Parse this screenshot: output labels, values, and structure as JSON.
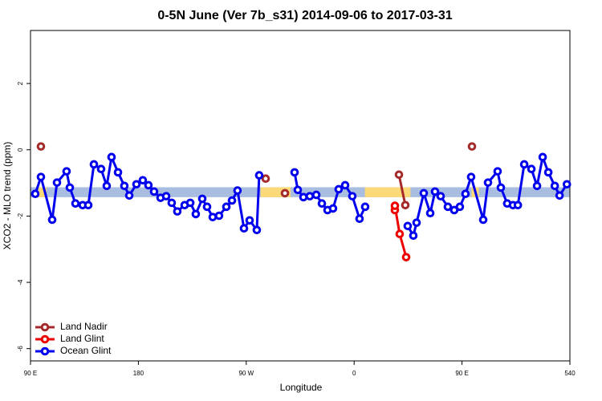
{
  "chart_data": {
    "type": "line",
    "title": "0-5N June (Ver 7b_s31)   2014-09-06 to 2017-03-31",
    "x_label": "Longitude",
    "y_label": "XCO2 - MLO trend (ppm)",
    "xlim": [
      90,
      540
    ],
    "ylim": [
      -6.37,
      3.6
    ],
    "xticks": [
      {
        "value": 90,
        "label": "90 E"
      },
      180,
      {
        "value": 270,
        "label": "90 W"
      },
      {
        "value": 360,
        "label": "0"
      },
      {
        "value": 450,
        "label": "90 E"
      },
      540
    ],
    "yticks": [
      -6,
      -4,
      -2,
      0,
      2
    ],
    "legend": "bottom-left",
    "band": {
      "range": [
        -1.43,
        -1.13
      ],
      "color": "#a8bddf",
      "highlight_color": "#fbd979",
      "highlights": [
        [
          96.7,
          103.4
        ],
        [
          282,
          307
        ],
        [
          369,
          407
        ],
        [
          458,
          464
        ]
      ]
    },
    "series": [
      {
        "name": "Land Nadir",
        "color": "#a52a2a",
        "x": [
          98.7,
          null,
          286.2,
          null,
          302.3,
          null,
          397.4,
          402.7,
          null,
          458.3
        ],
        "values": [
          0.1,
          null,
          -0.87,
          null,
          -1.31,
          null,
          -0.75,
          -1.67,
          null,
          0.1
        ]
      },
      {
        "name": "Land Glint",
        "color": "#ee0000",
        "x": [
          394.0,
          394.0,
          398.0,
          403.4
        ],
        "values": [
          -1.82,
          -1.69,
          -2.54,
          -3.24
        ]
      },
      {
        "name": "Ocean Glint",
        "color": "#0000ee",
        "x": [
          94.0,
          98.7,
          108.1,
          112.1,
          120.1,
          122.8,
          127.5,
          133.5,
          138.2,
          142.9,
          148.9,
          153.6,
          157.6,
          163.0,
          168.3,
          172.4,
          178.4,
          183.7,
          188.4,
          193.1,
          198.5,
          203.2,
          207.8,
          212.5,
          218.6,
          223.3,
          227.9,
          233.3,
          237.3,
          242.0,
          247.3,
          253.4,
          258.1,
          262.7,
          268.1,
          272.8,
          278.8,
          280.8,
          null,
          310.3,
          313.0,
          317.7,
          323.0,
          328.4,
          333.1,
          337.8,
          342.4,
          347.1,
          352.5,
          358.5,
          364.5,
          369.2,
          null,
          404.7,
          409.4,
          412.1,
          418.1,
          423.5,
          427.5,
          432.2,
          438.2,
          443.5,
          448.2,
          452.9,
          457.6,
          467.7,
          471.7,
          479.7,
          482.4,
          487.7,
          492.5,
          496.6,
          501.9,
          507.9,
          512.6,
          517.3,
          522.0,
          527.4,
          531.4,
          537.5
        ],
        "values": [
          -1.33,
          -0.82,
          -2.11,
          -0.99,
          -0.65,
          -1.14,
          -1.62,
          -1.67,
          -1.67,
          -0.44,
          -0.58,
          -1.09,
          -0.22,
          -0.68,
          -1.09,
          -1.38,
          -1.04,
          -0.92,
          -1.07,
          -1.26,
          -1.45,
          -1.4,
          -1.6,
          -1.86,
          -1.67,
          -1.6,
          -1.94,
          -1.48,
          -1.72,
          -2.03,
          -1.99,
          -1.72,
          -1.53,
          -1.23,
          -2.37,
          -2.13,
          -2.42,
          -0.77,
          null,
          -0.68,
          -1.21,
          -1.43,
          -1.4,
          -1.36,
          -1.62,
          -1.82,
          -1.77,
          -1.19,
          -1.07,
          -1.4,
          -2.08,
          -1.72,
          null,
          -2.3,
          -2.59,
          -2.2,
          -1.31,
          -1.91,
          -1.26,
          -1.4,
          -1.72,
          -1.82,
          -1.72,
          -1.33,
          -0.82,
          -2.11,
          -0.99,
          -0.65,
          -1.14,
          -1.62,
          -1.67,
          -1.67,
          -0.44,
          -0.58,
          -1.09,
          -0.22,
          -0.68,
          -1.09,
          -1.38,
          -1.04
        ]
      }
    ]
  }
}
